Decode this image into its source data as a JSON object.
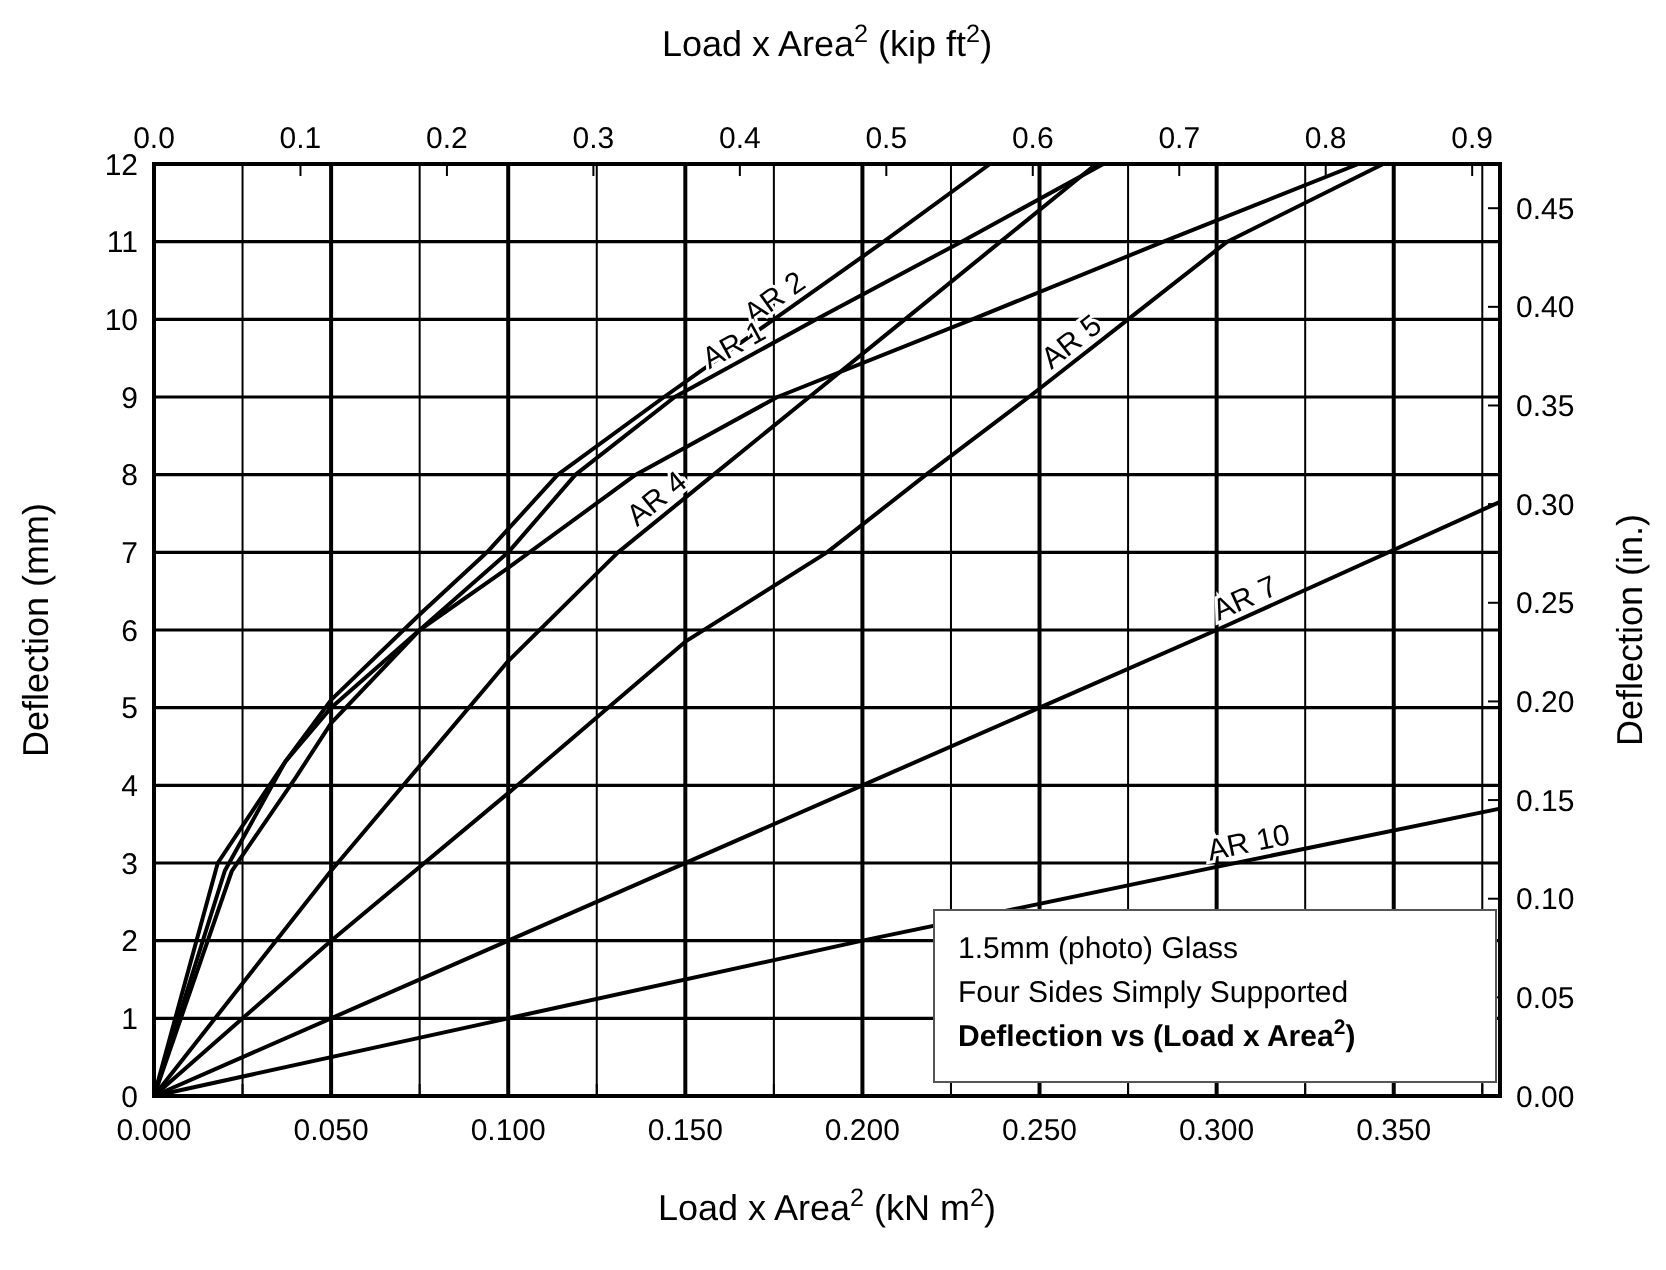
{
  "chart_data": {
    "type": "line",
    "xlabel": "Load x Area$^{2}$ (kN  m$^{2}$)",
    "x2label": "Load x Area$^{2}$ (kip  ft$^{2}$)",
    "ylabel": "Deflection (mm)",
    "y2label": "Deflection (in.)",
    "xlim": [
      0,
      0.38
    ],
    "xticks": [
      {
        "value": 0,
        "label": "0.000"
      },
      {
        "value": 0.025,
        "label": null
      },
      {
        "value": 0.05,
        "label": "0.050"
      },
      {
        "value": 0.075,
        "label": null
      },
      {
        "value": 0.1,
        "label": "0.100"
      },
      {
        "value": 0.125,
        "label": null
      },
      {
        "value": 0.15,
        "label": "0.150"
      },
      {
        "value": 0.175,
        "label": null
      },
      {
        "value": 0.2,
        "label": "0.200"
      },
      {
        "value": 0.225,
        "label": null
      },
      {
        "value": 0.25,
        "label": "0.250"
      },
      {
        "value": 0.275,
        "label": null
      },
      {
        "value": 0.3,
        "label": "0.300"
      },
      {
        "value": 0.325,
        "label": null
      },
      {
        "value": 0.35,
        "label": "0.350"
      },
      {
        "value": 0.375,
        "label": null
      }
    ],
    "x2lim": [
      0,
      0.919
    ],
    "x2ticks": [
      {
        "value": 0,
        "label": "0.0"
      },
      0.1,
      0.2,
      0.3,
      0.4,
      0.5,
      0.6,
      0.7,
      0.8,
      0.9
    ],
    "ylim": [
      0,
      12
    ],
    "yticks": [
      0,
      1,
      2,
      3,
      4,
      5,
      6,
      7,
      8,
      9,
      10,
      11,
      12
    ],
    "y2lim": [
      0,
      0.4724
    ],
    "y2ticks": [
      {
        "value": 0,
        "label": "0.00"
      },
      0.05,
      {
        "value": 0.1,
        "label": "0.10"
      },
      0.15,
      {
        "value": 0.2,
        "label": "0.20"
      },
      0.25,
      {
        "value": 0.3,
        "label": "0.30"
      },
      0.35,
      {
        "value": 0.4,
        "label": "0.40"
      },
      0.45
    ],
    "grid": true,
    "marker": "none",
    "line_style": "solid",
    "annotations": [
      "1.5mm (photo) Glass",
      "Four Sides Simply Supported",
      "Deflection vs (Load x Area$^{2}$)"
    ],
    "series": [
      {
        "name": "AR 2",
        "color": "#000000",
        "x": [
          0,
          0.02,
          0.037,
          0.05,
          0.075,
          0.094,
          0.114,
          0.144,
          0.175,
          0.206,
          0.236
        ],
        "values": [
          0,
          2.9,
          4.3,
          5.1,
          6.2,
          7,
          8,
          9,
          10,
          11,
          12
        ]
      },
      {
        "name": "AR 1",
        "color": "#000000",
        "x": [
          0,
          0.022,
          0.04,
          0.05,
          0.075,
          0.1,
          0.119,
          0.147,
          0.187,
          0.228,
          0.268
        ],
        "values": [
          0,
          2.9,
          4.1,
          4.8,
          6,
          7,
          8,
          9,
          10,
          11,
          12
        ]
      },
      {
        "color": "#000000",
        "x": [
          0,
          0.018,
          0.037,
          0.05,
          0.075,
          0.1,
          0.136,
          0.176,
          0.231,
          0.285,
          0.34
        ],
        "values": [
          0,
          3,
          4.3,
          5,
          6,
          6.8,
          8,
          9,
          10,
          11,
          12
        ]
      },
      {
        "name": "AR 4",
        "color": "#000000",
        "x": [
          0,
          0.05,
          0.1,
          0.131,
          0.158,
          0.185,
          0.212,
          0.239,
          0.266
        ],
        "values": [
          0,
          2.9,
          5.6,
          7,
          8,
          9,
          10,
          11,
          12
        ]
      },
      {
        "name": "AR 5",
        "color": "#000000",
        "x": [
          0,
          0.05,
          0.1,
          0.15,
          0.19,
          0.218,
          0.247,
          0.275,
          0.303,
          0.347
        ],
        "values": [
          0,
          2,
          3.9,
          5.85,
          7,
          8,
          9,
          10,
          11,
          12
        ]
      },
      {
        "name": "AR 7",
        "color": "#000000",
        "x": [
          0,
          0.1,
          0.2,
          0.3,
          0.38
        ],
        "values": [
          0,
          2,
          4,
          6,
          7.65
        ]
      },
      {
        "name": "AR 10",
        "color": "#000000",
        "x": [
          0,
          0.1,
          0.2,
          0.3,
          0.38
        ],
        "values": [
          0,
          1,
          2,
          2.95,
          3.7
        ]
      }
    ]
  }
}
